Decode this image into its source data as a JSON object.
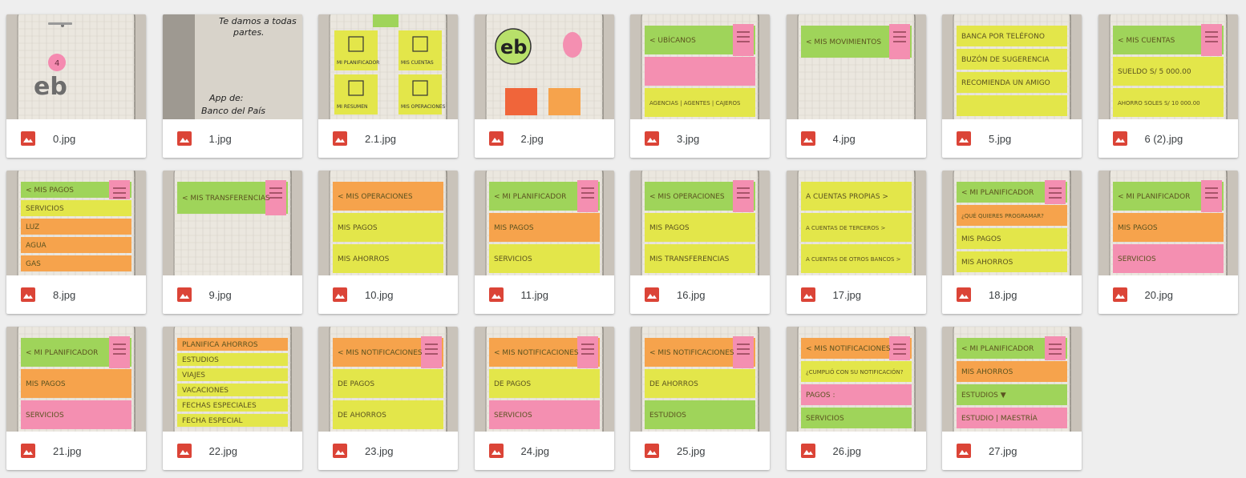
{
  "colors": {
    "background": "#eeeeee",
    "card": "#ffffff",
    "file_icon": "#db4437",
    "sticky_green": "#9fd45a",
    "sticky_yellow": "#e3e64a",
    "sticky_orange": "#f6a34c",
    "sticky_pink": "#f48fb1"
  },
  "file_type_icon": "image-file-icon",
  "files": [
    {
      "name": "0.jpg",
      "scene": {
        "kind": "phone",
        "sketch": [
          "eb"
        ],
        "pink_circle": "4"
      }
    },
    {
      "name": "1.jpg",
      "scene": {
        "kind": "note",
        "lines": [
          "Te damos a todas",
          "partes.",
          "App de:",
          "Banco del País"
        ]
      }
    },
    {
      "name": "2.1.jpg",
      "scene": {
        "kind": "menu-grid",
        "tiles": [
          "MI PLANIFICADOR",
          "MIS CUENTAS",
          "MI RESUMEN",
          "MIS OPERACIONES"
        ]
      }
    },
    {
      "name": "2.jpg",
      "scene": {
        "kind": "logo",
        "logo": "eb"
      }
    },
    {
      "name": "3.jpg",
      "scene": {
        "kind": "stack",
        "bands": [
          {
            "text": "< UBÍCANOS",
            "color": "green",
            "menu": true
          },
          {
            "text": "",
            "color": "pink"
          },
          {
            "text": "AGENCIAS | AGENTES | CAJEROS",
            "color": "yellow"
          }
        ]
      }
    },
    {
      "name": "4.jpg",
      "scene": {
        "kind": "stack",
        "bands": [
          {
            "text": "< MIS MOVIMIENTOS",
            "color": "green",
            "menu": true
          }
        ]
      }
    },
    {
      "name": "5.jpg",
      "scene": {
        "kind": "stack",
        "bands": [
          {
            "text": "BANCA POR TELÉFONO",
            "color": "yellow"
          },
          {
            "text": "BUZÓN DE SUGERENCIA",
            "color": "yellow"
          },
          {
            "text": "RECOMIENDA UN AMIGO",
            "color": "yellow"
          },
          {
            "text": "",
            "color": "yellow"
          }
        ]
      }
    },
    {
      "name": "6 (2).jpg",
      "scene": {
        "kind": "stack",
        "bands": [
          {
            "text": "< MIS CUENTAS",
            "color": "green",
            "menu": true
          },
          {
            "text": "SUELDO  S/ 5 000.00",
            "color": "yellow"
          },
          {
            "text": "AHORRO SOLES  S/ 10 000.00",
            "color": "yellow"
          }
        ]
      }
    },
    {
      "name": "8.jpg",
      "scene": {
        "kind": "stack",
        "bands": [
          {
            "text": "< MIS PAGOS",
            "color": "green",
            "menu": true
          },
          {
            "text": "SERVICIOS",
            "color": "yellow"
          },
          {
            "text": "LUZ",
            "color": "orange"
          },
          {
            "text": "AGUA",
            "color": "orange"
          },
          {
            "text": "GAS",
            "color": "orange"
          }
        ]
      }
    },
    {
      "name": "9.jpg",
      "scene": {
        "kind": "stack",
        "bands": [
          {
            "text": "< MIS TRANSFERENCIAS",
            "color": "green",
            "menu": true
          }
        ]
      }
    },
    {
      "name": "10.jpg",
      "scene": {
        "kind": "stack",
        "bands": [
          {
            "text": "< MIS OPERACIONES",
            "color": "orange"
          },
          {
            "text": "MIS PAGOS",
            "color": "yellow"
          },
          {
            "text": "MIS AHORROS",
            "color": "yellow"
          }
        ]
      }
    },
    {
      "name": "11.jpg",
      "scene": {
        "kind": "stack",
        "bands": [
          {
            "text": "< MI PLANIFICADOR",
            "color": "green",
            "menu": true
          },
          {
            "text": "MIS PAGOS",
            "color": "orange"
          },
          {
            "text": "SERVICIOS",
            "color": "yellow"
          }
        ]
      }
    },
    {
      "name": "16.jpg",
      "scene": {
        "kind": "stack",
        "bands": [
          {
            "text": "< MIS OPERACIONES",
            "color": "green",
            "menu": true
          },
          {
            "text": "MIS PAGOS",
            "color": "yellow"
          },
          {
            "text": "MIS TRANSFERENCIAS",
            "color": "yellow"
          }
        ]
      }
    },
    {
      "name": "17.jpg",
      "scene": {
        "kind": "stack",
        "bands": [
          {
            "text": "A CUENTAS PROPIAS  >",
            "color": "yellow"
          },
          {
            "text": "A CUENTAS DE TERCEROS  >",
            "color": "yellow"
          },
          {
            "text": "A CUENTAS DE OTROS BANCOS  >",
            "color": "yellow"
          }
        ]
      }
    },
    {
      "name": "18.jpg",
      "scene": {
        "kind": "stack",
        "bands": [
          {
            "text": "< MI PLANIFICADOR",
            "color": "green",
            "menu": true
          },
          {
            "text": "¿QUÉ QUIERES PROGRAMAR?",
            "color": "orange"
          },
          {
            "text": "MIS PAGOS",
            "color": "yellow"
          },
          {
            "text": "MIS AHORROS",
            "color": "yellow"
          }
        ]
      }
    },
    {
      "name": "20.jpg",
      "scene": {
        "kind": "stack",
        "bands": [
          {
            "text": "< MI PLANIFICADOR",
            "color": "green",
            "menu": true
          },
          {
            "text": "MIS PAGOS",
            "color": "orange"
          },
          {
            "text": "SERVICIOS",
            "color": "pink"
          }
        ]
      }
    },
    {
      "name": "21.jpg",
      "scene": {
        "kind": "stack",
        "bands": [
          {
            "text": "< MI PLANIFICADOR",
            "color": "green",
            "menu": true
          },
          {
            "text": "MIS PAGOS",
            "color": "orange"
          },
          {
            "text": "SERVICIOS",
            "color": "pink"
          }
        ]
      }
    },
    {
      "name": "22.jpg",
      "scene": {
        "kind": "stack",
        "bands": [
          {
            "text": "PLANIFICA AHORROS",
            "color": "orange"
          },
          {
            "text": "ESTUDIOS",
            "color": "yellow"
          },
          {
            "text": "VIAJES",
            "color": "yellow"
          },
          {
            "text": "VACACIONES",
            "color": "yellow"
          },
          {
            "text": "FECHAS ESPECIALES",
            "color": "yellow"
          },
          {
            "text": "FECHA ESPECIAL",
            "color": "yellow"
          }
        ]
      }
    },
    {
      "name": "23.jpg",
      "scene": {
        "kind": "stack",
        "bands": [
          {
            "text": "< MIS NOTIFICACIONES",
            "color": "orange",
            "menu": true
          },
          {
            "text": "DE PAGOS",
            "color": "yellow"
          },
          {
            "text": "DE AHORROS",
            "color": "yellow"
          }
        ]
      }
    },
    {
      "name": "24.jpg",
      "scene": {
        "kind": "stack",
        "bands": [
          {
            "text": "< MIS NOTIFICACIONES",
            "color": "orange",
            "menu": true
          },
          {
            "text": "DE PAGOS",
            "color": "yellow"
          },
          {
            "text": "SERVICIOS",
            "color": "pink"
          }
        ]
      }
    },
    {
      "name": "25.jpg",
      "scene": {
        "kind": "stack",
        "bands": [
          {
            "text": "< MIS NOTIFICACIONES",
            "color": "orange",
            "menu": true
          },
          {
            "text": "DE AHORROS",
            "color": "yellow"
          },
          {
            "text": "ESTUDIOS",
            "color": "green"
          }
        ]
      }
    },
    {
      "name": "26.jpg",
      "scene": {
        "kind": "stack",
        "bands": [
          {
            "text": "< MIS NOTIFICACIONES",
            "color": "orange",
            "menu": true
          },
          {
            "text": "¿CUMPLIÓ CON SU NOTIFICACIÓN?",
            "color": "yellow"
          },
          {
            "text": "PAGOS :",
            "color": "pink"
          },
          {
            "text": "SERVICIOS",
            "color": "green"
          }
        ]
      }
    },
    {
      "name": "27.jpg",
      "scene": {
        "kind": "stack",
        "bands": [
          {
            "text": "< MI PLANIFICADOR",
            "color": "green",
            "menu": true
          },
          {
            "text": "MIS AHORROS",
            "color": "orange"
          },
          {
            "text": "ESTUDIOS  ▼",
            "color": "green"
          },
          {
            "text": "ESTUDIO | MAESTRÍA",
            "color": "pink"
          }
        ]
      }
    }
  ]
}
